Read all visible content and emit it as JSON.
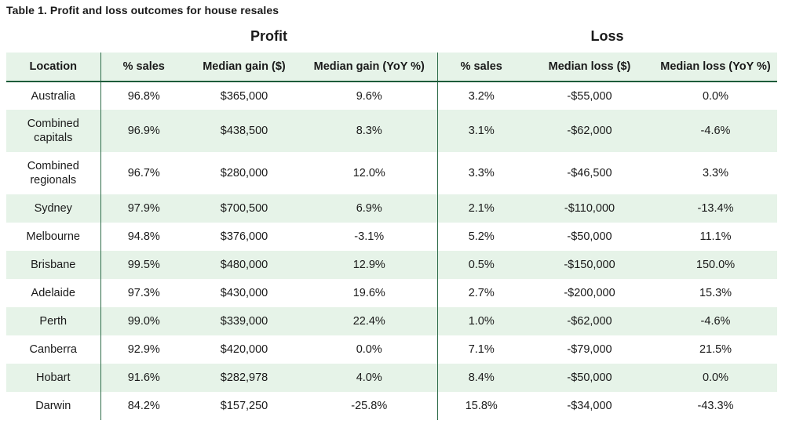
{
  "caption": "Table 1. Profit and loss outcomes for house resales",
  "group_headers": {
    "profit": "Profit",
    "loss": "Loss"
  },
  "columns": [
    "Location",
    "% sales",
    "Median gain ($)",
    "Median gain (YoY %)",
    "% sales",
    "Median loss ($)",
    "Median loss (YoY %)"
  ],
  "rows": [
    [
      "Australia",
      "96.8%",
      "$365,000",
      "9.6%",
      "3.2%",
      "-$55,000",
      "0.0%"
    ],
    [
      "Combined capitals",
      "96.9%",
      "$438,500",
      "8.3%",
      "3.1%",
      "-$62,000",
      "-4.6%"
    ],
    [
      "Combined regionals",
      "96.7%",
      "$280,000",
      "12.0%",
      "3.3%",
      "-$46,500",
      "3.3%"
    ],
    [
      "Sydney",
      "97.9%",
      "$700,500",
      "6.9%",
      "2.1%",
      "-$110,000",
      "-13.4%"
    ],
    [
      "Melbourne",
      "94.8%",
      "$376,000",
      "-3.1%",
      "5.2%",
      "-$50,000",
      "11.1%"
    ],
    [
      "Brisbane",
      "99.5%",
      "$480,000",
      "12.9%",
      "0.5%",
      "-$150,000",
      "150.0%"
    ],
    [
      "Adelaide",
      "97.3%",
      "$430,000",
      "19.6%",
      "2.7%",
      "-$200,000",
      "15.3%"
    ],
    [
      "Perth",
      "99.0%",
      "$339,000",
      "22.4%",
      "1.0%",
      "-$62,000",
      "-4.6%"
    ],
    [
      "Canberra",
      "92.9%",
      "$420,000",
      "0.0%",
      "7.1%",
      "-$79,000",
      "21.5%"
    ],
    [
      "Hobart",
      "91.6%",
      "$282,978",
      "4.0%",
      "8.4%",
      "-$50,000",
      "0.0%"
    ],
    [
      "Darwin",
      "84.2%",
      "$157,250",
      "-25.8%",
      "15.8%",
      "-$34,000",
      "-43.3%"
    ]
  ],
  "chart_data": {
    "type": "table",
    "title": "Table 1. Profit and loss outcomes for house resales",
    "column_groups": [
      {
        "name": "Profit",
        "columns": [
          "% sales",
          "Median gain ($)",
          "Median gain (YoY %)"
        ]
      },
      {
        "name": "Loss",
        "columns": [
          "% sales",
          "Median loss ($)",
          "Median loss (YoY %)"
        ]
      }
    ],
    "categories": [
      "Australia",
      "Combined capitals",
      "Combined regionals",
      "Sydney",
      "Melbourne",
      "Brisbane",
      "Adelaide",
      "Perth",
      "Canberra",
      "Hobart",
      "Darwin"
    ],
    "series": [
      {
        "name": "% sales",
        "group": "Profit",
        "values": [
          96.8,
          96.9,
          96.7,
          97.9,
          94.8,
          99.5,
          97.3,
          99.0,
          92.9,
          91.6,
          84.2
        ]
      },
      {
        "name": "Median gain ($)",
        "group": "Profit",
        "values": [
          365000,
          438500,
          280000,
          700500,
          376000,
          480000,
          430000,
          339000,
          420000,
          282978,
          157250
        ]
      },
      {
        "name": "Median gain (YoY %)",
        "group": "Profit",
        "values": [
          9.6,
          8.3,
          12.0,
          6.9,
          -3.1,
          12.9,
          19.6,
          22.4,
          0.0,
          4.0,
          -25.8
        ]
      },
      {
        "name": "% sales",
        "group": "Loss",
        "values": [
          3.2,
          3.1,
          3.3,
          2.1,
          5.2,
          0.5,
          2.7,
          1.0,
          7.1,
          8.4,
          15.8
        ]
      },
      {
        "name": "Median loss ($)",
        "group": "Loss",
        "values": [
          -55000,
          -62000,
          -46500,
          -110000,
          -50000,
          -150000,
          -200000,
          -62000,
          -79000,
          -50000,
          -34000
        ]
      },
      {
        "name": "Median loss (YoY %)",
        "group": "Loss",
        "values": [
          0.0,
          -4.6,
          3.3,
          -13.4,
          11.1,
          150.0,
          15.3,
          -4.6,
          21.5,
          0.0,
          -43.3
        ]
      }
    ]
  }
}
